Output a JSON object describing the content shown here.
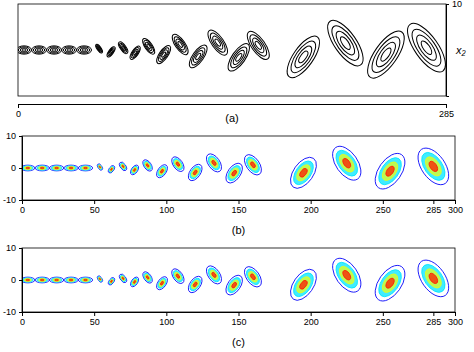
{
  "chart_data": [
    {
      "type": "contour",
      "caption": "(a)",
      "color": "black",
      "y_label": "x₂",
      "xlim": [
        0,
        285
      ],
      "xticks": [
        0,
        285
      ],
      "ylim": [
        -10,
        10
      ],
      "yticks": [
        10
      ],
      "x": [
        4,
        14,
        24,
        34,
        44,
        54,
        62,
        70,
        78,
        87,
        97,
        108,
        120,
        133,
        147,
        160,
        190,
        218,
        245,
        272
      ],
      "values": [
        0,
        0,
        0,
        0,
        0,
        0.3,
        -0.4,
        0.5,
        -0.6,
        0.8,
        -1,
        1.2,
        -1.4,
        1.6,
        -1.6,
        1,
        -1.5,
        1.5,
        -1,
        0.5
      ],
      "size": [
        0.9,
        0.9,
        0.9,
        0.9,
        0.9,
        1.1,
        1.3,
        1.5,
        1.7,
        2,
        2.3,
        2.6,
        2.9,
        3.2,
        3.5,
        3.6,
        5.3,
        5.8,
        6,
        6.2
      ]
    },
    {
      "type": "contour",
      "caption": "(b)",
      "color": "jet",
      "xlim": [
        0,
        300
      ],
      "xticks": [
        0,
        50,
        100,
        150,
        200,
        250,
        285,
        300
      ],
      "ylim": [
        -10,
        10
      ],
      "yticks": [
        10,
        0,
        -10
      ],
      "x": [
        4,
        14,
        24,
        34,
        44,
        54,
        62,
        70,
        78,
        87,
        97,
        108,
        120,
        133,
        147,
        160,
        195,
        225,
        255,
        285
      ],
      "values": [
        0,
        0,
        0,
        0,
        0,
        0.3,
        -0.4,
        0.5,
        -0.6,
        0.8,
        -1,
        1.2,
        -1.4,
        1.6,
        -1.6,
        1,
        -1.5,
        1.5,
        -1,
        0.5
      ],
      "size": [
        0.9,
        0.9,
        0.9,
        0.9,
        0.9,
        1.1,
        1.3,
        1.5,
        1.7,
        2,
        2.3,
        2.6,
        2.9,
        3.2,
        3.5,
        3.6,
        5.5,
        6,
        6.3,
        6.5
      ]
    },
    {
      "type": "contour",
      "caption": "(c)",
      "color": "jet",
      "xlim": [
        0,
        300
      ],
      "xticks": [
        0,
        50,
        100,
        150,
        200,
        250,
        285,
        300
      ],
      "ylim": [
        -10,
        10
      ],
      "yticks": [
        10,
        0,
        -10
      ],
      "x": [
        4,
        14,
        24,
        34,
        44,
        54,
        62,
        70,
        78,
        87,
        97,
        108,
        120,
        133,
        147,
        160,
        195,
        225,
        255,
        285
      ],
      "values": [
        0,
        0,
        0,
        0,
        0,
        0.3,
        -0.4,
        0.5,
        -0.6,
        0.8,
        -1,
        1.2,
        -1.4,
        1.6,
        -1.6,
        1,
        -1.5,
        1.5,
        -1,
        0.5
      ],
      "size": [
        0.9,
        0.9,
        0.9,
        0.9,
        0.9,
        1.1,
        1.3,
        1.5,
        1.7,
        2,
        2.3,
        2.6,
        2.9,
        3.2,
        3.5,
        3.6,
        5.5,
        6,
        6.3,
        6.5
      ]
    }
  ]
}
